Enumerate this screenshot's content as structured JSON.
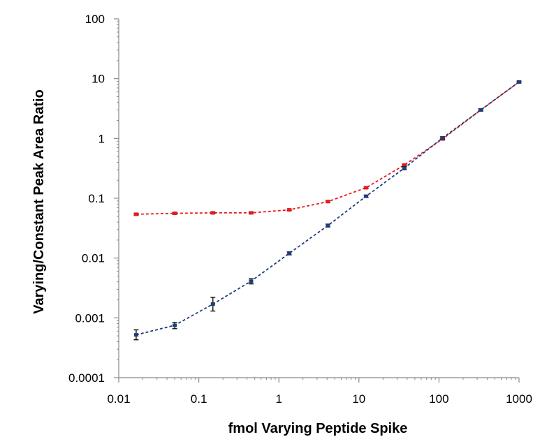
{
  "chart_data": {
    "type": "scatter",
    "title": "",
    "xlabel": "fmol Varying Peptide Spike",
    "ylabel": "Varying/Constant Peak Area Ratio",
    "xscale": "log",
    "yscale": "log",
    "xlim": [
      0.01,
      1000
    ],
    "ylim": [
      0.0001,
      100
    ],
    "x_tick_labels": [
      "0.01",
      "0.1",
      "1",
      "10",
      "100",
      "1000"
    ],
    "y_tick_labels": [
      "0.0001",
      "0.001",
      "0.01",
      "0.1",
      "1",
      "10",
      "100"
    ],
    "x_ticks": [
      0.01,
      0.1,
      1,
      10,
      100,
      1000
    ],
    "y_ticks": [
      0.0001,
      0.001,
      0.01,
      0.1,
      1,
      10,
      100
    ],
    "grid": false,
    "legend": "none",
    "line_style": "dashed",
    "series": [
      {
        "color": "#e8191c",
        "x": [
          0.0165,
          0.05,
          0.15,
          0.45,
          1.35,
          4.1,
          12.3,
          37,
          111,
          333,
          1000
        ],
        "y": [
          0.054,
          0.056,
          0.057,
          0.057,
          0.064,
          0.088,
          0.15,
          0.36,
          0.98,
          3.0,
          8.8
        ],
        "err_low": [
          0.052,
          0.054,
          0.055,
          0.055,
          0.062,
          0.085,
          0.145,
          0.35,
          0.95,
          2.9,
          8.5
        ],
        "err_high": [
          0.056,
          0.058,
          0.059,
          0.059,
          0.066,
          0.091,
          0.155,
          0.37,
          1.01,
          3.1,
          9.1
        ]
      },
      {
        "color": "#1f3d7a",
        "x": [
          0.0165,
          0.05,
          0.15,
          0.45,
          1.35,
          4.1,
          12.3,
          37,
          111,
          333,
          1000
        ],
        "y": [
          0.00052,
          0.00075,
          0.0017,
          0.0041,
          0.012,
          0.035,
          0.108,
          0.32,
          1.02,
          3.0,
          8.8
        ],
        "err_low": [
          0.00043,
          0.00066,
          0.0013,
          0.0037,
          0.0113,
          0.033,
          0.103,
          0.3,
          0.97,
          2.85,
          8.5
        ],
        "err_high": [
          0.00063,
          0.00084,
          0.0022,
          0.0045,
          0.0127,
          0.037,
          0.113,
          0.34,
          1.07,
          3.15,
          9.1
        ]
      }
    ]
  }
}
